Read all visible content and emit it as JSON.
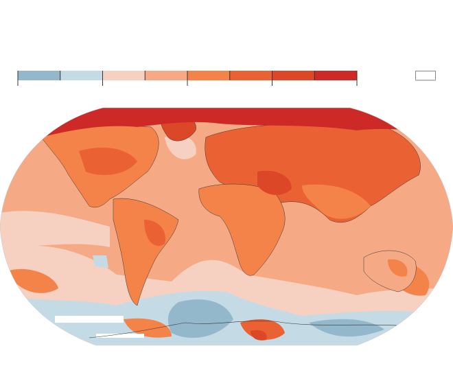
{
  "legend": {
    "bins": [
      {
        "color": "#93b8cc"
      },
      {
        "color": "#c4dbe6"
      },
      {
        "color": "#f6d0c0"
      },
      {
        "color": "#f5a985"
      },
      {
        "color": "#f4834a"
      },
      {
        "color": "#ea6233"
      },
      {
        "color": "#dc4728"
      },
      {
        "color": "#cd2a27"
      }
    ],
    "no_data_color": "#ffffff"
  },
  "map": {
    "type": "world temperature anomaly choropleth",
    "projection": "robinson",
    "ocean_base_color": "#f5a985",
    "land_color": "#f4834a",
    "arctic_color": "#cd2a27",
    "southern_ocean_color": "#c4dbe6",
    "border_color": "#333333"
  }
}
